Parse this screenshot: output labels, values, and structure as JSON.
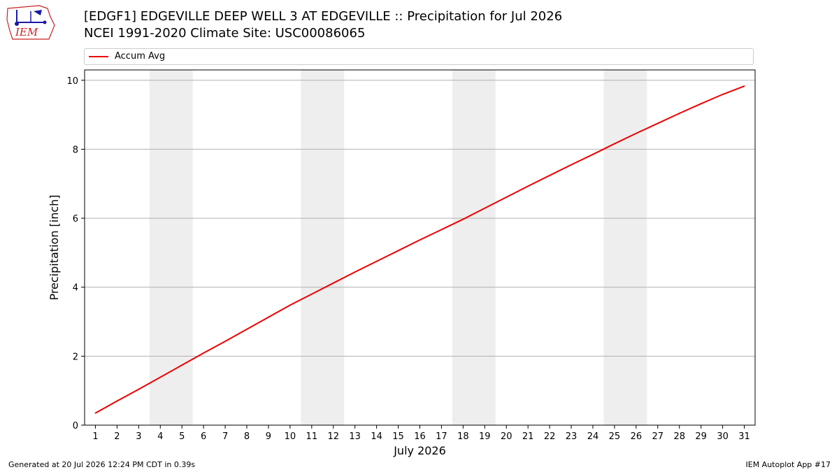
{
  "title_line1": "[EDGF1] EDGEVILLE DEEP WELL 3 AT EDGEVILLE :: Precipitation for Jul 2026",
  "title_line2": "NCEI 1991-2020 Climate Site: USC00086065",
  "logo_text": "IEM",
  "footer_left": "Generated at 20 Jul 2026 12:24 PM CDT in 0.39s",
  "footer_right": "IEM Autoplot App #17",
  "colors": {
    "series": "#ee0000",
    "weekend_band": "#eeeeee",
    "grid": "#b0b0b0",
    "logo": "#cc2222"
  },
  "chart_data": {
    "type": "line",
    "xlabel": "July 2026",
    "ylabel": "Precipitation [inch]",
    "x": [
      1,
      2,
      3,
      4,
      5,
      6,
      7,
      8,
      9,
      10,
      11,
      12,
      13,
      14,
      15,
      16,
      17,
      18,
      19,
      20,
      21,
      22,
      23,
      24,
      25,
      26,
      27,
      28,
      29,
      30,
      31
    ],
    "xlim": [
      0.5,
      31.5
    ],
    "ylim": [
      0,
      10.3
    ],
    "yticks": [
      0,
      2,
      4,
      6,
      8,
      10
    ],
    "grid": "horizontal",
    "legend_position": "top",
    "shaded_weekends": [
      [
        3.5,
        5.5
      ],
      [
        10.5,
        12.5
      ],
      [
        17.5,
        19.5
      ],
      [
        24.5,
        26.5
      ]
    ],
    "series": [
      {
        "name": "Accum Avg",
        "values": [
          0.35,
          0.7,
          1.04,
          1.39,
          1.74,
          2.09,
          2.43,
          2.78,
          3.13,
          3.48,
          3.8,
          4.12,
          4.44,
          4.75,
          5.06,
          5.37,
          5.67,
          5.97,
          6.29,
          6.61,
          6.93,
          7.24,
          7.55,
          7.85,
          8.16,
          8.46,
          8.75,
          9.04,
          9.32,
          9.59,
          9.83
        ]
      }
    ]
  }
}
